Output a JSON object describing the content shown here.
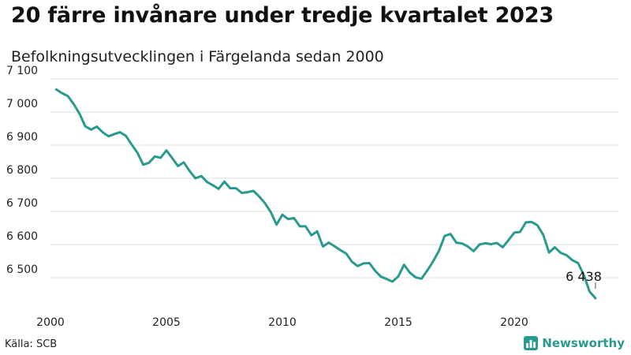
{
  "header": {
    "title": "20 färre invånare under tredje kvartalet 2023",
    "subtitle": "Befolkningsutvecklingen i Färgelanda sedan 2000"
  },
  "footer": {
    "source": "Källa: SCB",
    "brand": "Newsworthy",
    "brand_icon": "bar-chart-icon",
    "brand_color": "#2a9a8e"
  },
  "chart_data": {
    "type": "line",
    "title": "20 färre invånare under tredje kvartalet 2023",
    "subtitle": "Befolkningsutvecklingen i Färgelanda sedan 2000",
    "xlabel": "",
    "ylabel": "",
    "x_ticks": [
      2000,
      2005,
      2010,
      2015,
      2020
    ],
    "y_ticks": [
      6500,
      6600,
      6700,
      6800,
      6900,
      7000,
      7100
    ],
    "y_tick_labels": [
      "6 500",
      "6 600",
      "6 700",
      "6 800",
      "6 900",
      "7 000",
      "7 100"
    ],
    "xlim": [
      2000,
      2024
    ],
    "ylim": [
      6420,
      7100
    ],
    "grid": true,
    "line_color": "#2a9a8e",
    "end_label": "6 438",
    "series": [
      {
        "x": [
          2000.25,
          2000.5,
          2000.75,
          2001.0,
          2001.25,
          2001.5,
          2001.75,
          2002.0,
          2002.25,
          2002.5,
          2002.75,
          2003.0,
          2003.25,
          2003.5,
          2003.75,
          2004.0,
          2004.25,
          2004.5,
          2004.75,
          2005.0,
          2005.25,
          2005.5,
          2005.75,
          2006.0,
          2006.25,
          2006.5,
          2006.75,
          2007.0,
          2007.25,
          2007.5,
          2007.75,
          2008.0,
          2008.25,
          2008.5,
          2008.75,
          2009.0,
          2009.25,
          2009.5,
          2009.75,
          2010.0,
          2010.25,
          2010.5,
          2010.75,
          2011.0,
          2011.25,
          2011.5,
          2011.75,
          2012.0,
          2012.25,
          2012.5,
          2012.75,
          2013.0,
          2013.25,
          2013.5,
          2013.75,
          2014.0,
          2014.25,
          2014.5,
          2014.75,
          2015.0,
          2015.25,
          2015.5,
          2015.75,
          2016.0,
          2016.25,
          2016.5,
          2016.75,
          2017.0,
          2017.25,
          2017.5,
          2017.75,
          2018.0,
          2018.25,
          2018.5,
          2018.75,
          2019.0,
          2019.25,
          2019.5,
          2019.75,
          2020.0,
          2020.25,
          2020.5,
          2020.75,
          2021.0,
          2021.25,
          2021.5,
          2021.75,
          2022.0,
          2022.25,
          2022.5,
          2022.75,
          2023.0,
          2023.25,
          2023.5
        ],
        "values": [
          7068,
          7057,
          7048,
          7024,
          6995,
          6957,
          6947,
          6956,
          6939,
          6927,
          6933,
          6939,
          6928,
          6902,
          6877,
          6841,
          6847,
          6866,
          6862,
          6884,
          6861,
          6837,
          6848,
          6822,
          6800,
          6807,
          6789,
          6779,
          6768,
          6790,
          6770,
          6770,
          6756,
          6758,
          6762,
          6745,
          6725,
          6698,
          6660,
          6690,
          6677,
          6680,
          6655,
          6655,
          6628,
          6640,
          6594,
          6606,
          6595,
          6583,
          6573,
          6548,
          6535,
          6543,
          6544,
          6521,
          6503,
          6496,
          6488,
          6504,
          6539,
          6515,
          6501,
          6497,
          6522,
          6549,
          6581,
          6626,
          6632,
          6606,
          6603,
          6594,
          6580,
          6600,
          6604,
          6601,
          6605,
          6592,
          6613,
          6636,
          6638,
          6667,
          6668,
          6658,
          6629,
          6576,
          6592,
          6575,
          6568,
          6553,
          6544,
          6508,
          6458,
          6438
        ]
      }
    ]
  }
}
